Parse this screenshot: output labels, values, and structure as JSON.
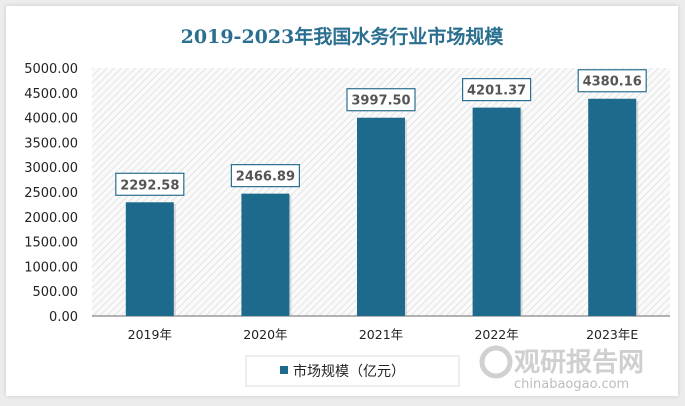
{
  "chart_data": {
    "type": "bar",
    "title": "2019-2023年我国水务行业市场规模",
    "categories": [
      "2019年",
      "2020年",
      "2021年",
      "2022年",
      "2023年E"
    ],
    "series": [
      {
        "name": "市场规模（亿元）",
        "values": [
          2292.58,
          2466.89,
          3997.5,
          4201.37,
          4380.16
        ]
      }
    ],
    "data_labels": [
      "2292.58",
      "2466.89",
      "3997.50",
      "4201.37",
      "4380.16"
    ],
    "ylim": [
      0,
      5000
    ],
    "yticks": [
      "0.00",
      "500.00",
      "1000.00",
      "1500.00",
      "2000.00",
      "2500.00",
      "3000.00",
      "3500.00",
      "4000.00",
      "4500.00",
      "5000.00"
    ],
    "xlabel": "",
    "ylabel": "",
    "grid": false,
    "legend": "bottom",
    "colors": {
      "bar": "#1e6a8c",
      "title": "#2a6f8f",
      "label_border": "#2a6f8f"
    }
  },
  "watermark": {
    "name": "观研报告网",
    "url": "chinabaogao.com"
  }
}
